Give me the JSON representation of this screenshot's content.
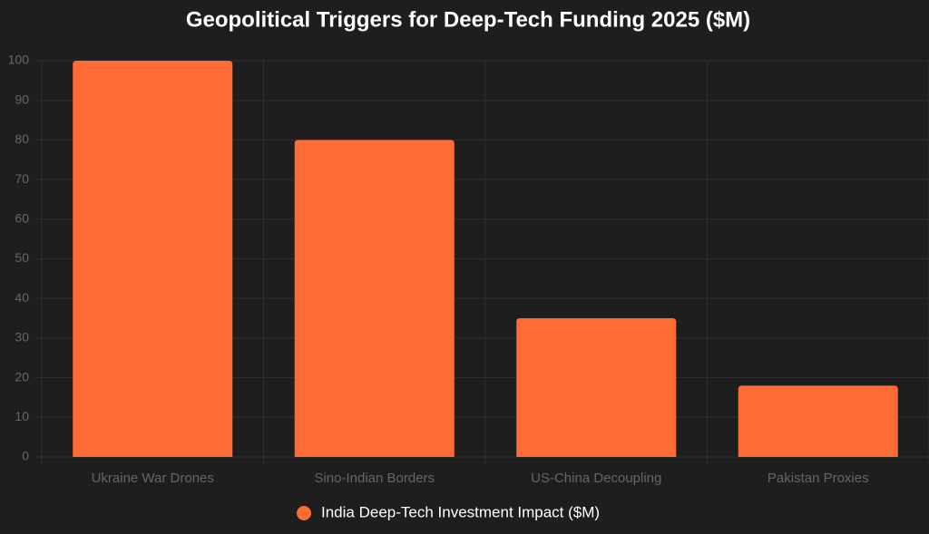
{
  "chart_data": {
    "type": "bar",
    "title": "Geopolitical Triggers for Deep-Tech Funding 2025 ($M)",
    "categories": [
      "Ukraine War Drones",
      "Sino-Indian Borders",
      "US-China Decoupling",
      "Pakistan Proxies"
    ],
    "series": [
      {
        "name": "India Deep-Tech Investment Impact ($M)",
        "color": "#ff6b35",
        "values": [
          100,
          80,
          35,
          18
        ]
      }
    ],
    "ylim": [
      0,
      100
    ],
    "yticks": [
      0,
      10,
      20,
      30,
      40,
      50,
      60,
      70,
      80,
      90,
      100
    ],
    "grid": true,
    "legend": "bottom"
  }
}
